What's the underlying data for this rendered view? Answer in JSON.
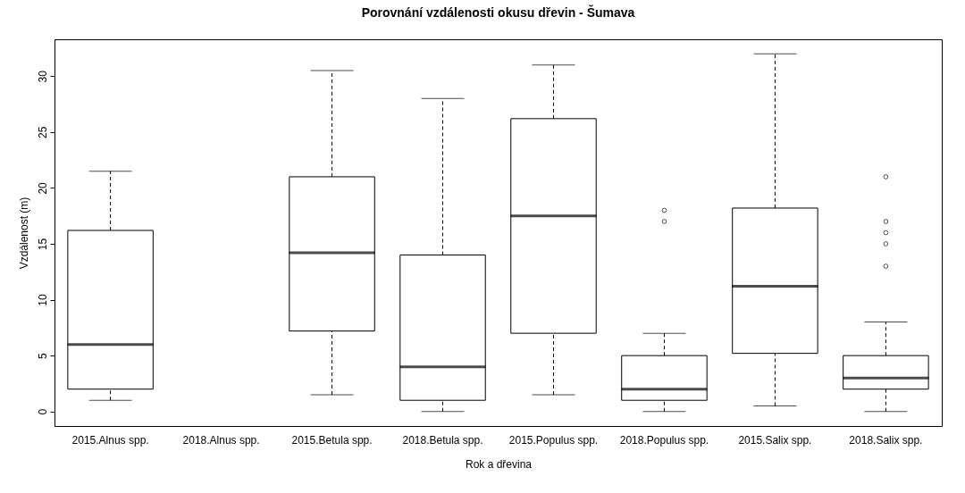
{
  "chart_data": {
    "type": "box",
    "title": "Porovnání vzdálenosti okusu dřevin - Šumava",
    "xlabel": "Rok a dřevina",
    "ylabel": "Vzdálenost (m)",
    "categories": [
      "2015.Alnus spp.",
      "2018.Alnus spp.",
      "2015.Betula spp.",
      "2018.Betula spp.",
      "2015.Populus spp.",
      "2018.Populus spp.",
      "2015.Salix spp.",
      "2018.Salix spp."
    ],
    "boxes": [
      {
        "low": 1,
        "q1": 2,
        "median": 6,
        "q3": 16.2,
        "high": 21.5
      },
      null,
      {
        "low": 1.5,
        "q1": 7.2,
        "median": 14.2,
        "q3": 21,
        "high": 30.5
      },
      {
        "low": 0,
        "q1": 1,
        "median": 4,
        "q3": 14,
        "high": 28
      },
      {
        "low": 1.5,
        "q1": 7,
        "median": 17.5,
        "q3": 26.2,
        "high": 31
      },
      {
        "low": 0,
        "q1": 1,
        "median": 2,
        "q3": 5,
        "high": 7,
        "outliers": [
          17,
          18
        ]
      },
      {
        "low": 0.5,
        "q1": 5.2,
        "median": 11.2,
        "q3": 18.2,
        "high": 32
      },
      {
        "low": 0,
        "q1": 2,
        "median": 3,
        "q3": 5,
        "high": 8,
        "outliers": [
          13,
          15,
          16,
          17,
          21
        ]
      }
    ],
    "ylim": [
      -1.3,
      33.3
    ],
    "yticks": [
      0,
      5,
      10,
      15,
      20,
      25,
      30
    ]
  }
}
